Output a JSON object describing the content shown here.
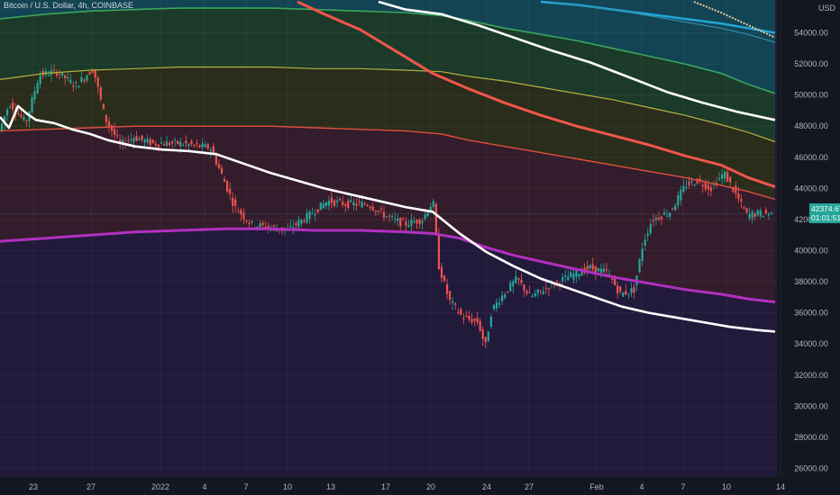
{
  "chart_data": {
    "type": "candlestick",
    "title": "Bitcoin / U.S. Dollar, 4h, COINBASE",
    "currency_label": "USD",
    "ylim": [
      25400,
      56000
    ],
    "y_ticks": [
      26000,
      28000,
      30000,
      32000,
      34000,
      36000,
      38000,
      40000,
      42000,
      44000,
      46000,
      48000,
      50000,
      52000,
      54000
    ],
    "x_ticks": [
      "23",
      "27",
      "2022",
      "4",
      "7",
      "10",
      "13",
      "17",
      "20",
      "24",
      "27",
      "Feb",
      "4",
      "7",
      "10",
      "14"
    ],
    "last_price": "42374.67",
    "countdown": "01:01:51",
    "grid": true,
    "colors": {
      "background": "#131722",
      "up": "#26a69a",
      "down": "#ef5350",
      "ma_white": "#ffffff",
      "ma_purple": "#b230c0",
      "ma_red": "#f0564a",
      "ma_red_soft": "#e0503e",
      "ma_olive": "#b4b040",
      "ma_green": "#3aa65c",
      "ma_teal": "#2f8fb0",
      "band_dark": "#211a3a",
      "band_maroon": "#331c2b",
      "band_olive": "#2a2c1c",
      "band_green": "#1c3a2a",
      "band_teal": "#124454",
      "price_label_bg": "#26a69a"
    },
    "series": [
      {
        "values": [
          [
            0,
            48600
          ],
          [
            10,
            47900
          ],
          [
            20,
            49300
          ],
          [
            30,
            48800
          ],
          [
            40,
            48400
          ],
          [
            60,
            48200
          ],
          [
            80,
            47800
          ],
          [
            100,
            47500
          ],
          [
            120,
            47100
          ],
          [
            150,
            46700
          ],
          [
            180,
            46500
          ],
          [
            210,
            46400
          ],
          [
            240,
            46200
          ],
          [
            270,
            45600
          ],
          [
            300,
            45000
          ],
          [
            330,
            44500
          ],
          [
            360,
            44000
          ],
          [
            390,
            43600
          ],
          [
            420,
            43200
          ],
          [
            450,
            42800
          ],
          [
            480,
            42500
          ],
          [
            510,
            41100
          ],
          [
            540,
            39900
          ],
          [
            570,
            39000
          ],
          [
            600,
            38200
          ],
          [
            630,
            37600
          ],
          [
            660,
            37000
          ],
          [
            690,
            36400
          ],
          [
            720,
            36000
          ],
          [
            750,
            35700
          ],
          [
            780,
            35400
          ],
          [
            810,
            35100
          ],
          [
            840,
            34900
          ],
          [
            860,
            34800
          ]
        ]
      },
      {
        "values": [
          [
            0,
            40600
          ],
          [
            50,
            40800
          ],
          [
            100,
            41000
          ],
          [
            150,
            41200
          ],
          [
            200,
            41300
          ],
          [
            250,
            41400
          ],
          [
            300,
            41400
          ],
          [
            350,
            41300
          ],
          [
            400,
            41300
          ],
          [
            450,
            41200
          ],
          [
            480,
            41100
          ],
          [
            510,
            40800
          ],
          [
            540,
            40200
          ],
          [
            570,
            39700
          ],
          [
            600,
            39300
          ],
          [
            640,
            38800
          ],
          [
            680,
            38300
          ],
          [
            720,
            37900
          ],
          [
            760,
            37500
          ],
          [
            800,
            37200
          ],
          [
            830,
            36900
          ],
          [
            860,
            36700
          ]
        ]
      },
      {
        "values": [
          [
            0,
            47700
          ],
          [
            50,
            47800
          ],
          [
            100,
            47900
          ],
          [
            150,
            48000
          ],
          [
            200,
            48000
          ],
          [
            250,
            48000
          ],
          [
            300,
            48000
          ],
          [
            350,
            47900
          ],
          [
            400,
            47800
          ],
          [
            450,
            47700
          ],
          [
            490,
            47500
          ],
          [
            520,
            47100
          ],
          [
            560,
            46700
          ],
          [
            600,
            46300
          ],
          [
            640,
            45900
          ],
          [
            680,
            45500
          ],
          [
            720,
            45100
          ],
          [
            760,
            44700
          ],
          [
            800,
            44200
          ],
          [
            830,
            43800
          ],
          [
            860,
            43300
          ]
        ]
      },
      {
        "values": [
          [
            330,
            56000
          ],
          [
            360,
            55200
          ],
          [
            400,
            54200
          ],
          [
            440,
            52800
          ],
          [
            480,
            51400
          ],
          [
            520,
            50400
          ],
          [
            560,
            49500
          ],
          [
            600,
            48700
          ],
          [
            640,
            48000
          ],
          [
            680,
            47400
          ],
          [
            720,
            46800
          ],
          [
            760,
            46100
          ],
          [
            800,
            45500
          ],
          [
            830,
            44700
          ],
          [
            860,
            44100
          ]
        ]
      },
      {
        "values": [
          [
            0,
            51000
          ],
          [
            50,
            51400
          ],
          [
            100,
            51600
          ],
          [
            150,
            51700
          ],
          [
            200,
            51800
          ],
          [
            250,
            51800
          ],
          [
            300,
            51800
          ],
          [
            350,
            51700
          ],
          [
            400,
            51700
          ],
          [
            450,
            51600
          ],
          [
            490,
            51500
          ],
          [
            520,
            51200
          ],
          [
            560,
            50900
          ],
          [
            600,
            50500
          ],
          [
            640,
            50100
          ],
          [
            680,
            49700
          ],
          [
            720,
            49200
          ],
          [
            760,
            48700
          ],
          [
            800,
            48100
          ],
          [
            830,
            47600
          ],
          [
            860,
            47000
          ]
        ]
      },
      {
        "values": [
          [
            0,
            54900
          ],
          [
            50,
            55200
          ],
          [
            100,
            55400
          ],
          [
            150,
            55500
          ],
          [
            200,
            55600
          ],
          [
            250,
            55600
          ],
          [
            300,
            55600
          ],
          [
            350,
            55500
          ],
          [
            400,
            55400
          ],
          [
            450,
            55300
          ],
          [
            490,
            55100
          ],
          [
            520,
            54800
          ],
          [
            560,
            54300
          ],
          [
            600,
            53900
          ],
          [
            640,
            53500
          ],
          [
            680,
            53000
          ],
          [
            720,
            52500
          ],
          [
            760,
            52000
          ],
          [
            800,
            51400
          ],
          [
            830,
            50700
          ],
          [
            860,
            50100
          ]
        ]
      },
      {
        "values": [
          [
            420,
            56000
          ],
          [
            450,
            55500
          ],
          [
            490,
            55200
          ],
          [
            530,
            54500
          ],
          [
            570,
            53700
          ],
          [
            610,
            52900
          ],
          [
            655,
            52100
          ],
          [
            700,
            51100
          ],
          [
            740,
            50200
          ],
          [
            780,
            49500
          ],
          [
            820,
            48900
          ],
          [
            860,
            48400
          ]
        ]
      },
      {
        "values": [
          [
            600,
            56000
          ],
          [
            640,
            55800
          ],
          [
            680,
            55500
          ],
          [
            720,
            55200
          ],
          [
            760,
            54900
          ],
          [
            800,
            54600
          ],
          [
            830,
            54300
          ],
          [
            860,
            54000
          ]
        ]
      },
      {
        "values": [
          [
            610,
            56000
          ],
          [
            650,
            55700
          ],
          [
            700,
            55300
          ],
          [
            750,
            54800
          ],
          [
            800,
            54300
          ],
          [
            830,
            53900
          ],
          [
            860,
            53400
          ]
        ]
      },
      {
        "values": [
          [
            770,
            56000
          ],
          [
            800,
            55300
          ],
          [
            830,
            54500
          ],
          [
            860,
            53700
          ]
        ]
      }
    ]
  }
}
